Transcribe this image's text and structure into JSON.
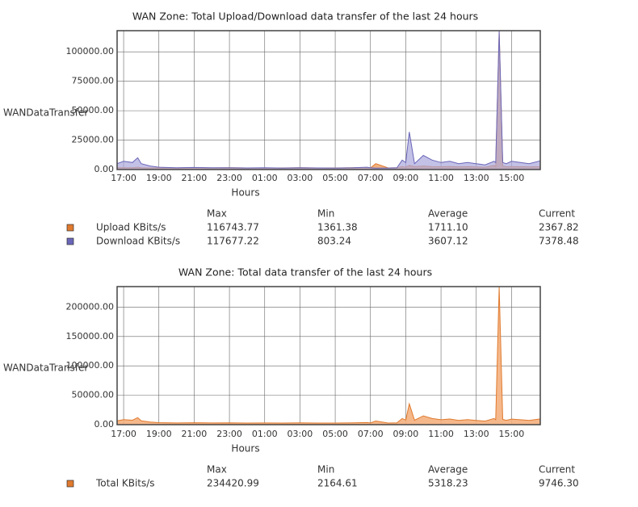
{
  "chart_data": [
    {
      "type": "area",
      "title": "WAN Zone: Total Upload/Download data transfer of the last 24 hours",
      "xlabel": "Hours",
      "ylabel": "WANDataTransfer",
      "grid": true,
      "x": [
        -0.37,
        0,
        0.5,
        0.8,
        1,
        1.5,
        2,
        3,
        4,
        5,
        6,
        7,
        8,
        9,
        10,
        11,
        12,
        13,
        13.8,
        14,
        14.3,
        15,
        15.5,
        15.8,
        16,
        16.2,
        16.5,
        17,
        17.5,
        18,
        18.5,
        19,
        19.5,
        20,
        20.5,
        21,
        21.1,
        21.3,
        21.5,
        21.7,
        22,
        22.5,
        23,
        23.63
      ],
      "xlim": [
        -0.37,
        23.63
      ],
      "xticks": [
        {
          "value": 0,
          "label": "17:00"
        },
        {
          "value": 2,
          "label": "19:00"
        },
        {
          "value": 4,
          "label": "21:00"
        },
        {
          "value": 6,
          "label": "23:00"
        },
        {
          "value": 8,
          "label": "01:00"
        },
        {
          "value": 10,
          "label": "03:00"
        },
        {
          "value": 12,
          "label": "05:00"
        },
        {
          "value": 14,
          "label": "07:00"
        },
        {
          "value": 16,
          "label": "09:00"
        },
        {
          "value": 18,
          "label": "11:00"
        },
        {
          "value": 20,
          "label": "13:00"
        },
        {
          "value": 22,
          "label": "15:00"
        }
      ],
      "ylim": [
        0,
        118000
      ],
      "yticks": [
        {
          "value": 0,
          "label": "0.00"
        },
        {
          "value": 25000,
          "label": "25000.00"
        },
        {
          "value": 50000,
          "label": "50000.00"
        },
        {
          "value": 75000,
          "label": "75000.00"
        },
        {
          "value": 100000,
          "label": "100000.00"
        }
      ],
      "series": [
        {
          "name": "Upload KBits/s",
          "color": "#e07a2e",
          "fill": "#f0a870",
          "values": [
            1500,
            1600,
            1500,
            2000,
            1500,
            1400,
            1500,
            1400,
            1500,
            1400,
            1500,
            1400,
            1400,
            1400,
            1500,
            1400,
            1400,
            1500,
            1600,
            1400,
            5000,
            1400,
            1500,
            2500,
            2000,
            3500,
            2500,
            3000,
            2500,
            2400,
            2600,
            2300,
            2500,
            2200,
            2000,
            3500,
            2500,
            116743,
            3000,
            2400,
            2500,
            2400,
            2300,
            2368
          ]
        },
        {
          "name": "Download KBits/s",
          "color": "#6a66b8",
          "fill": "#a9a6dc",
          "values": [
            5000,
            7000,
            6000,
            10000,
            5000,
            3000,
            2000,
            1500,
            1800,
            1500,
            1600,
            1400,
            1500,
            1300,
            1500,
            1400,
            1300,
            1500,
            2000,
            1500,
            1200,
            1300,
            1500,
            8000,
            6000,
            32000,
            5000,
            12000,
            8000,
            6000,
            7000,
            5000,
            6000,
            5000,
            4000,
            7000,
            6000,
            117677,
            6000,
            5000,
            7000,
            6000,
            5000,
            7378
          ]
        }
      ],
      "stats": {
        "columns": [
          "Max",
          "Min",
          "Average",
          "Current"
        ],
        "rows": [
          [
            "116743.77",
            "1361.38",
            "1711.10",
            "2367.82"
          ],
          [
            "117677.22",
            "803.24",
            "3607.12",
            "7378.48"
          ]
        ]
      }
    },
    {
      "type": "area",
      "title": "WAN Zone: Total data transfer of the last 24 hours",
      "xlabel": "Hours",
      "ylabel": "WANDataTransfer",
      "grid": true,
      "x": [
        -0.37,
        0,
        0.5,
        0.8,
        1,
        1.5,
        2,
        3,
        4,
        5,
        6,
        7,
        8,
        9,
        10,
        11,
        12,
        13,
        13.8,
        14,
        14.3,
        15,
        15.5,
        15.8,
        16,
        16.2,
        16.5,
        17,
        17.5,
        18,
        18.5,
        19,
        19.5,
        20,
        20.5,
        21,
        21.1,
        21.3,
        21.5,
        21.7,
        22,
        22.5,
        23,
        23.63
      ],
      "xlim": [
        -0.37,
        23.63
      ],
      "xticks": [
        {
          "value": 0,
          "label": "17:00"
        },
        {
          "value": 2,
          "label": "19:00"
        },
        {
          "value": 4,
          "label": "21:00"
        },
        {
          "value": 6,
          "label": "23:00"
        },
        {
          "value": 8,
          "label": "01:00"
        },
        {
          "value": 10,
          "label": "03:00"
        },
        {
          "value": 12,
          "label": "05:00"
        },
        {
          "value": 14,
          "label": "07:00"
        },
        {
          "value": 16,
          "label": "09:00"
        },
        {
          "value": 18,
          "label": "11:00"
        },
        {
          "value": 20,
          "label": "13:00"
        },
        {
          "value": 22,
          "label": "15:00"
        }
      ],
      "ylim": [
        0,
        235000
      ],
      "yticks": [
        {
          "value": 0,
          "label": "0.00"
        },
        {
          "value": 50000,
          "label": "50000.00"
        },
        {
          "value": 100000,
          "label": "100000.00"
        },
        {
          "value": 150000,
          "label": "150000.00"
        },
        {
          "value": 200000,
          "label": "200000.00"
        }
      ],
      "series": [
        {
          "name": "Total KBits/s",
          "color": "#e07a2e",
          "fill": "#f4b07e",
          "values": [
            6500,
            8600,
            7500,
            12000,
            6500,
            4400,
            3500,
            2900,
            3300,
            2900,
            3100,
            2800,
            2900,
            2700,
            3000,
            2800,
            2700,
            3000,
            3600,
            2900,
            6200,
            2700,
            3000,
            10500,
            8000,
            35500,
            7500,
            15000,
            10500,
            8400,
            9600,
            7300,
            8500,
            7200,
            6000,
            10500,
            8500,
            234421,
            9000,
            7400,
            9500,
            8400,
            7300,
            9746
          ]
        }
      ],
      "stats": {
        "columns": [
          "Max",
          "Min",
          "Average",
          "Current"
        ],
        "rows": [
          [
            "234420.99",
            "2164.61",
            "5318.23",
            "9746.30"
          ]
        ]
      }
    }
  ]
}
